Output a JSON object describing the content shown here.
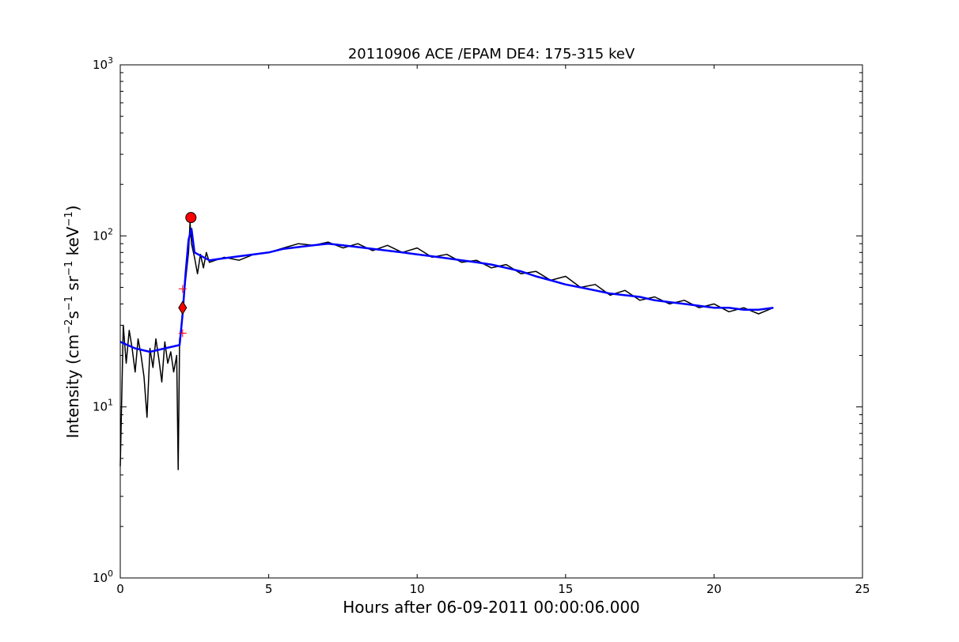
{
  "chart_data": {
    "type": "line",
    "title": "20110906 ACE /EPAM DE4: 175-315 keV",
    "xlabel": "Hours after 06-09-2011 00:00:06.000",
    "ylabel": {
      "prefix": "Intensity (cm",
      "exp1": "−2",
      "mid1": "s",
      "exp2": "−1",
      "mid2": " sr",
      "exp3": "−1",
      "mid3": " keV",
      "exp4": "−1",
      "suffix": ")"
    },
    "xlim": [
      0,
      25
    ],
    "ylim": [
      1,
      1000
    ],
    "yscale": "log",
    "xticks": [
      0,
      5,
      10,
      15,
      20,
      25
    ],
    "xtick_labels": [
      "0",
      "5",
      "10",
      "15",
      "20",
      "25"
    ],
    "yticks": [
      1,
      10,
      100,
      1000
    ],
    "ytick_labels": [
      {
        "base": "10",
        "exp": "0"
      },
      {
        "base": "10",
        "exp": "1"
      },
      {
        "base": "10",
        "exp": "2"
      },
      {
        "base": "10",
        "exp": "3"
      }
    ],
    "grid": false,
    "series": [
      {
        "color": "#000000",
        "style": "line",
        "x": [
          0.0,
          0.1,
          0.2,
          0.3,
          0.4,
          0.5,
          0.6,
          0.7,
          0.8,
          0.9,
          1.0,
          1.1,
          1.2,
          1.3,
          1.4,
          1.5,
          1.6,
          1.7,
          1.8,
          1.9,
          1.95,
          2.0,
          2.05,
          2.1,
          2.2,
          2.3,
          2.35,
          2.4,
          2.5,
          2.6,
          2.7,
          2.8,
          2.9,
          3.0,
          3.5,
          4.0,
          4.5,
          5.0,
          5.5,
          6.0,
          6.5,
          7.0,
          7.5,
          8.0,
          8.5,
          9.0,
          9.5,
          10.0,
          10.5,
          11.0,
          11.5,
          12.0,
          12.5,
          13.0,
          13.5,
          14.0,
          14.5,
          15.0,
          15.5,
          16.0,
          16.5,
          17.0,
          17.5,
          18.0,
          18.5,
          19.0,
          19.5,
          20.0,
          20.5,
          21.0,
          21.5,
          22.0
        ],
        "y": [
          4.5,
          30,
          18,
          28,
          22,
          16,
          25,
          20,
          15,
          8.7,
          22,
          17,
          25,
          19,
          14,
          24,
          18,
          21,
          16,
          20,
          4.3,
          25,
          27,
          38,
          55,
          80,
          120,
          90,
          75,
          60,
          78,
          65,
          80,
          70,
          75,
          72,
          78,
          80,
          85,
          90,
          88,
          92,
          85,
          90,
          82,
          88,
          80,
          85,
          75,
          78,
          70,
          72,
          65,
          68,
          60,
          62,
          55,
          58,
          50,
          52,
          45,
          48,
          42,
          44,
          40,
          42,
          38,
          40,
          36,
          38,
          35,
          38
        ]
      },
      {
        "color": "#0000ff",
        "style": "smoothed",
        "x": [
          0.0,
          0.5,
          1.0,
          1.5,
          2.0,
          2.1,
          2.2,
          2.3,
          2.4,
          2.5,
          3.0,
          3.5,
          4.0,
          4.5,
          5.0,
          5.5,
          6.0,
          6.5,
          7.0,
          7.5,
          8.0,
          8.5,
          9.0,
          9.5,
          10.0,
          10.5,
          11.0,
          11.5,
          12.0,
          12.5,
          13.0,
          13.5,
          14.0,
          14.5,
          15.0,
          15.5,
          16.0,
          16.5,
          17.0,
          17.5,
          18.0,
          18.5,
          19.0,
          19.5,
          20.0,
          20.5,
          21.0,
          21.5,
          22.0
        ],
        "y": [
          24,
          22,
          21,
          22,
          23,
          35,
          60,
          95,
          110,
          80,
          72,
          74,
          76,
          78,
          80,
          84,
          86,
          88,
          90,
          88,
          86,
          84,
          82,
          80,
          78,
          76,
          74,
          72,
          70,
          68,
          65,
          62,
          58,
          55,
          52,
          50,
          48,
          46,
          45,
          44,
          42,
          41,
          40,
          39,
          38,
          38,
          37,
          37,
          38
        ]
      }
    ],
    "markers": [
      {
        "shape": "circle",
        "color": "#ff0000",
        "x": 2.38,
        "y": 128
      },
      {
        "shape": "diamond",
        "color": "#ff0000",
        "x": 2.1,
        "y": 38
      },
      {
        "shape": "plus",
        "color": "#ff0000",
        "x": 2.1,
        "y": 49
      },
      {
        "shape": "plus",
        "color": "#ff0000",
        "x": 2.1,
        "y": 27
      }
    ]
  }
}
